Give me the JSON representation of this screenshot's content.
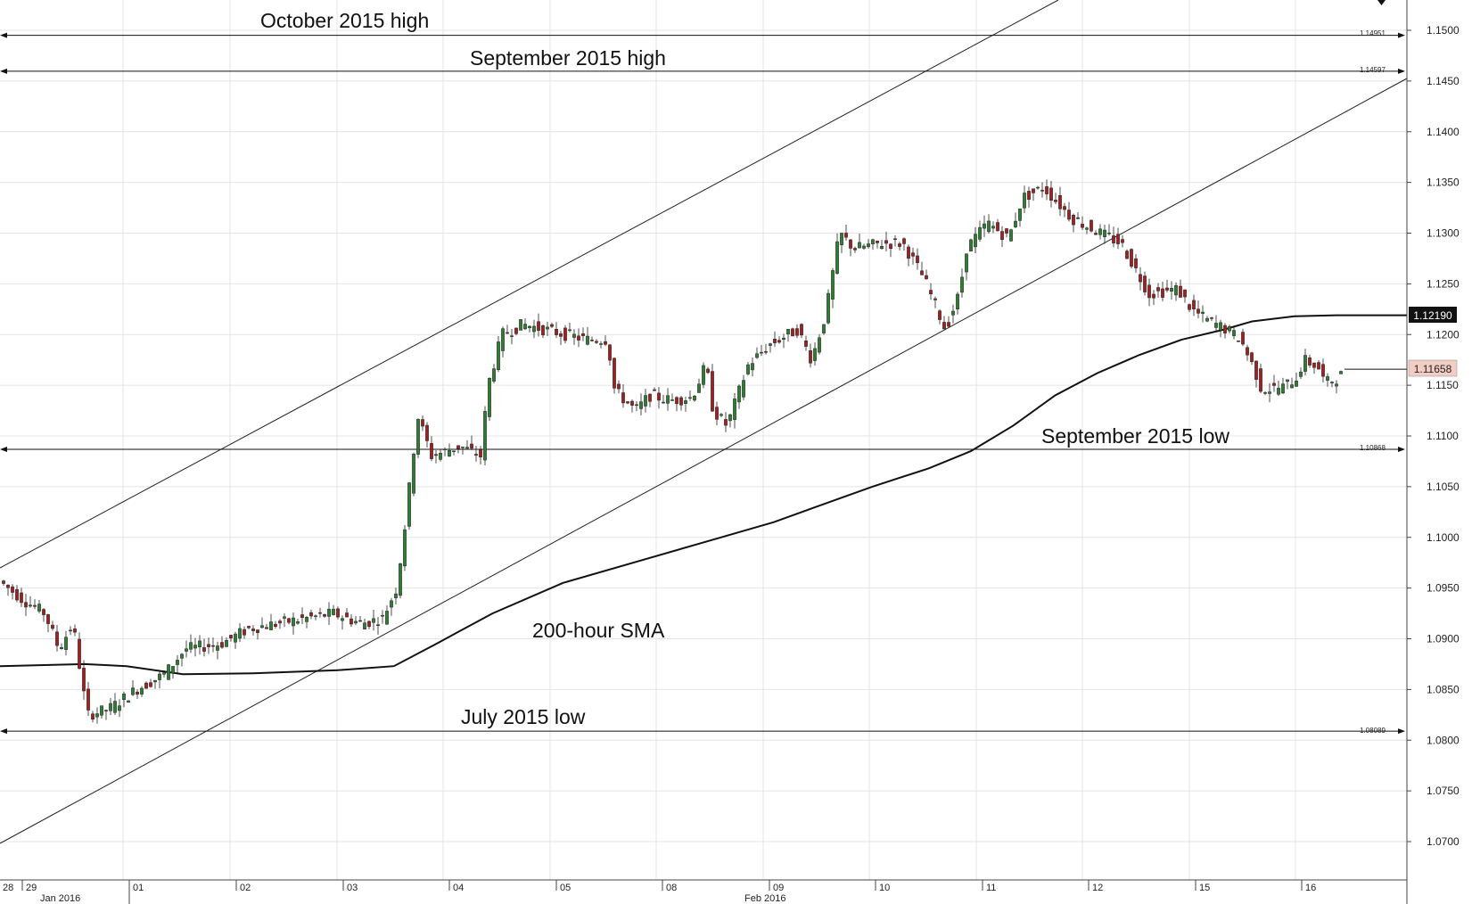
{
  "chart_data": {
    "type": "candlestick",
    "title": "",
    "xlabel": "",
    "ylabel": "",
    "ylim": [
      1.065,
      1.153
    ],
    "grid": true,
    "y_ticks": [
      "1.1500",
      "1.1450",
      "1.1400",
      "1.1350",
      "1.1300",
      "1.1250",
      "1.1200",
      "1.1150",
      "1.1100",
      "1.1050",
      "1.1000",
      "1.0950",
      "1.0900",
      "1.0850",
      "1.0800",
      "1.0750",
      "1.0700"
    ],
    "x_day_labels": [
      "28",
      "29",
      "01",
      "02",
      "03",
      "04",
      "05",
      "08",
      "09",
      "10",
      "11",
      "12",
      "15",
      "16"
    ],
    "x_month_labels": [
      "Jan 2016",
      "Feb 2016"
    ],
    "levels": [
      {
        "label": "October 2015 high",
        "price_label": "1.14951",
        "value": 1.14951
      },
      {
        "label": "September 2015 high",
        "price_label": "1.14597",
        "value": 1.14597
      },
      {
        "label": "September 2015 low",
        "price_label": "1.10868",
        "value": 1.10868
      },
      {
        "label": "July 2015 low",
        "price_label": "1.08089",
        "value": 1.08089
      }
    ],
    "sma": {
      "label": "200-hour SMA",
      "current_label": "1.12190",
      "current": 1.1219,
      "points": [
        [
          0,
          1.0873
        ],
        [
          0.06,
          1.0875
        ],
        [
          0.09,
          1.0873
        ],
        [
          0.13,
          1.0865
        ],
        [
          0.18,
          1.0866
        ],
        [
          0.24,
          1.0869
        ],
        [
          0.28,
          1.0873
        ],
        [
          0.31,
          1.0895
        ],
        [
          0.35,
          1.0925
        ],
        [
          0.4,
          1.0955
        ],
        [
          0.45,
          1.0975
        ],
        [
          0.5,
          1.0995
        ],
        [
          0.55,
          1.1015
        ],
        [
          0.58,
          1.103
        ],
        [
          0.62,
          1.105
        ],
        [
          0.66,
          1.1068
        ],
        [
          0.69,
          1.1085
        ],
        [
          0.72,
          1.111
        ],
        [
          0.75,
          1.114
        ],
        [
          0.78,
          1.1162
        ],
        [
          0.81,
          1.118
        ],
        [
          0.84,
          1.1195
        ],
        [
          0.87,
          1.1205
        ],
        [
          0.89,
          1.1213
        ],
        [
          0.92,
          1.1218
        ],
        [
          0.95,
          1.1219
        ]
      ]
    },
    "last_price_label": "1.11658",
    "last_price": 1.11658,
    "series_anchors": [
      [
        0,
        1.096
      ],
      [
        0.02,
        1.0938
      ],
      [
        0.035,
        1.0925
      ],
      [
        0.045,
        1.089
      ],
      [
        0.055,
        1.0915
      ],
      [
        0.065,
        1.0825
      ],
      [
        0.08,
        1.083
      ],
      [
        0.1,
        1.085
      ],
      [
        0.12,
        1.0865
      ],
      [
        0.135,
        1.089
      ],
      [
        0.16,
        1.0895
      ],
      [
        0.18,
        1.091
      ],
      [
        0.2,
        1.0915
      ],
      [
        0.22,
        1.092
      ],
      [
        0.24,
        1.0925
      ],
      [
        0.26,
        1.0915
      ],
      [
        0.275,
        1.092
      ],
      [
        0.285,
        1.095
      ],
      [
        0.29,
        1.1
      ],
      [
        0.3,
        1.112
      ],
      [
        0.31,
        1.108
      ],
      [
        0.33,
        1.109
      ],
      [
        0.345,
        1.108
      ],
      [
        0.35,
        1.115
      ],
      [
        0.36,
        1.12
      ],
      [
        0.375,
        1.121
      ],
      [
        0.39,
        1.1205
      ],
      [
        0.42,
        1.1195
      ],
      [
        0.435,
        1.1195
      ],
      [
        0.44,
        1.1145
      ],
      [
        0.455,
        1.1125
      ],
      [
        0.465,
        1.114
      ],
      [
        0.48,
        1.1135
      ],
      [
        0.495,
        1.1138
      ],
      [
        0.505,
        1.117
      ],
      [
        0.51,
        1.1125
      ],
      [
        0.52,
        1.111
      ],
      [
        0.535,
        1.117
      ],
      [
        0.55,
        1.119
      ],
      [
        0.57,
        1.1205
      ],
      [
        0.58,
        1.1175
      ],
      [
        0.59,
        1.122
      ],
      [
        0.6,
        1.13
      ],
      [
        0.61,
        1.1285
      ],
      [
        0.63,
        1.129
      ],
      [
        0.645,
        1.129
      ],
      [
        0.66,
        1.1255
      ],
      [
        0.675,
        1.1205
      ],
      [
        0.685,
        1.124
      ],
      [
        0.69,
        1.1285
      ],
      [
        0.705,
        1.131
      ],
      [
        0.72,
        1.1295
      ],
      [
        0.73,
        1.1335
      ],
      [
        0.745,
        1.1345
      ],
      [
        0.765,
        1.1315
      ],
      [
        0.785,
        1.13
      ],
      [
        0.8,
        1.129
      ],
      [
        0.81,
        1.1265
      ],
      [
        0.82,
        1.124
      ],
      [
        0.84,
        1.1245
      ],
      [
        0.85,
        1.1225
      ],
      [
        0.86,
        1.1215
      ],
      [
        0.875,
        1.1205
      ],
      [
        0.885,
        1.1195
      ],
      [
        0.895,
        1.1165
      ],
      [
        0.9,
        1.1145
      ],
      [
        0.915,
        1.1148
      ],
      [
        0.925,
        1.1158
      ],
      [
        0.93,
        1.1175
      ],
      [
        0.94,
        1.1168
      ],
      [
        0.945,
        1.1152
      ],
      [
        0.955,
        1.1158
      ],
      [
        0.96,
        1.1166
      ]
    ]
  }
}
